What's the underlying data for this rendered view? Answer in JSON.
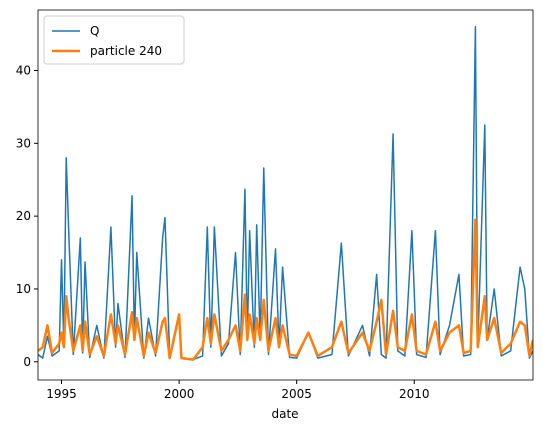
{
  "chart_data": {
    "type": "line",
    "xlabel": "date",
    "x": [
      1994.0,
      1994.2,
      1994.4,
      1994.6,
      1994.9,
      1995.0,
      1995.1,
      1995.2,
      1995.3,
      1995.5,
      1995.8,
      1995.9,
      1996.0,
      1996.2,
      1996.5,
      1996.8,
      1997.1,
      1997.3,
      1997.4,
      1997.7,
      1998.0,
      1998.1,
      1998.2,
      1998.5,
      1998.7,
      1999.0,
      1999.3,
      1999.4,
      1999.6,
      2000.0,
      2000.1,
      2000.6,
      2001.0,
      2001.2,
      2001.35,
      2001.5,
      2001.8,
      2002.1,
      2002.4,
      2002.6,
      2002.8,
      2002.9,
      2003.0,
      2003.2,
      2003.3,
      2003.45,
      2003.6,
      2003.8,
      2004.1,
      2004.25,
      2004.4,
      2004.7,
      2005.0,
      2005.5,
      2005.9,
      2006.5,
      2006.9,
      2007.2,
      2007.8,
      2008.1,
      2008.4,
      2008.6,
      2008.8,
      2009.1,
      2009.3,
      2009.6,
      2009.9,
      2010.1,
      2010.5,
      2010.9,
      2011.1,
      2011.5,
      2011.9,
      2012.1,
      2012.4,
      2012.6,
      2012.7,
      2013.0,
      2013.1,
      2013.4,
      2013.7,
      2014.1,
      2014.5,
      2014.7,
      2014.9,
      2015.05
    ],
    "series": [
      {
        "name": "Q",
        "color": "#1f77b4",
        "values": [
          1.0,
          0.5,
          3.5,
          0.8,
          1.5,
          14.0,
          2.0,
          28.0,
          18.5,
          1.0,
          17.0,
          1.2,
          13.7,
          0.6,
          5.0,
          0.5,
          18.5,
          2.0,
          8.0,
          0.6,
          22.8,
          3.0,
          15.0,
          0.5,
          6.0,
          0.8,
          17.0,
          19.8,
          0.5,
          6.5,
          0.5,
          0.3,
          0.8,
          18.5,
          2.0,
          18.5,
          0.8,
          2.5,
          15.0,
          1.0,
          23.7,
          3.0,
          18.0,
          2.0,
          18.8,
          3.0,
          26.6,
          1.0,
          15.5,
          2.0,
          13.0,
          0.6,
          0.5,
          4.0,
          0.5,
          1.0,
          16.3,
          0.8,
          5.0,
          0.8,
          12.0,
          1.0,
          0.5,
          31.3,
          1.5,
          0.8,
          18.0,
          1.0,
          0.6,
          18.0,
          1.0,
          5.0,
          12.0,
          0.8,
          1.0,
          46.0,
          2.0,
          32.5,
          3.0,
          10.0,
          0.8,
          1.5,
          13.0,
          10.0,
          0.5,
          1.5
        ]
      },
      {
        "name": "particle 240",
        "color": "#ff7f0e",
        "values": [
          1.5,
          2.0,
          5.0,
          1.2,
          2.5,
          4.0,
          2.0,
          9.0,
          6.0,
          1.5,
          5.0,
          1.5,
          5.5,
          1.0,
          3.5,
          0.8,
          6.5,
          2.5,
          5.0,
          1.0,
          6.8,
          3.0,
          6.0,
          0.8,
          4.0,
          1.2,
          5.5,
          6.0,
          0.5,
          6.5,
          0.5,
          0.3,
          2.0,
          6.0,
          2.5,
          6.5,
          1.5,
          3.0,
          5.0,
          1.5,
          9.2,
          3.0,
          6.5,
          2.5,
          6.0,
          3.0,
          8.5,
          1.5,
          6.0,
          2.0,
          5.0,
          1.0,
          0.8,
          4.0,
          0.8,
          2.0,
          5.5,
          1.2,
          4.0,
          1.5,
          5.5,
          8.5,
          1.0,
          7.0,
          2.0,
          1.5,
          6.5,
          1.5,
          1.0,
          5.5,
          1.5,
          4.0,
          5.0,
          1.2,
          1.5,
          19.5,
          2.0,
          9.0,
          3.0,
          6.0,
          1.2,
          2.5,
          5.5,
          5.0,
          0.8,
          3.0
        ]
      }
    ],
    "xlim": [
      1994.0,
      2015.05
    ],
    "xticks": [
      1995,
      2000,
      2005,
      2010
    ],
    "ylim": [
      -2.5,
      48.3
    ],
    "yticks": [
      0,
      10,
      20,
      30,
      40
    ],
    "legend": "upper left"
  }
}
